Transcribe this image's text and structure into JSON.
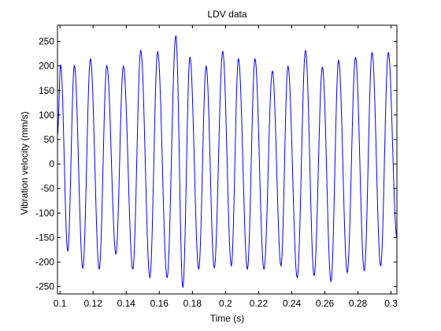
{
  "chart_data": {
    "type": "line",
    "title": "LDV data",
    "xlabel": "Time (s)",
    "ylabel": "Vibration velocity (mm/s)",
    "xlim": [
      0.0985,
      0.3035
    ],
    "ylim": [
      -265,
      283
    ],
    "xticks": [
      0.1,
      0.12,
      0.14,
      0.16,
      0.18,
      0.2,
      0.22,
      0.24,
      0.26,
      0.28,
      0.3
    ],
    "xtick_labels": [
      "0.1",
      "0.12",
      "0.14",
      "0.16",
      "0.18",
      "0.2",
      "0.22",
      "0.24",
      "0.26",
      "0.28",
      "0.3"
    ],
    "yticks": [
      -250,
      -200,
      -150,
      -100,
      -50,
      0,
      50,
      100,
      150,
      200,
      250
    ],
    "ytick_labels": [
      "-250",
      "-200",
      "-150",
      "-100",
      "-50",
      "0",
      "50",
      "100",
      "150",
      "200",
      "250"
    ],
    "grid": false,
    "line_color": "#0000ff",
    "series": [
      {
        "points": [
          [
            0.0985,
            60
          ],
          [
            0.1004,
            202
          ],
          [
            0.1047,
            -178
          ],
          [
            0.1087,
            201
          ],
          [
            0.1138,
            -213
          ],
          [
            0.1184,
            215
          ],
          [
            0.1237,
            -215
          ],
          [
            0.1283,
            201
          ],
          [
            0.1338,
            -184
          ],
          [
            0.1383,
            200
          ],
          [
            0.144,
            -215
          ],
          [
            0.1488,
            232
          ],
          [
            0.1543,
            -232
          ],
          [
            0.159,
            230
          ],
          [
            0.1647,
            -232
          ],
          [
            0.17,
            262
          ],
          [
            0.1742,
            -252
          ],
          [
            0.1785,
            218
          ],
          [
            0.1838,
            -215
          ],
          [
            0.1883,
            200
          ],
          [
            0.1932,
            -212
          ],
          [
            0.1983,
            230
          ],
          [
            0.2035,
            -208
          ],
          [
            0.2078,
            215
          ],
          [
            0.2132,
            -215
          ],
          [
            0.2178,
            215
          ],
          [
            0.2232,
            -215
          ],
          [
            0.2283,
            190
          ],
          [
            0.2335,
            -208
          ],
          [
            0.2377,
            200
          ],
          [
            0.2433,
            -232
          ],
          [
            0.2483,
            232
          ],
          [
            0.2535,
            -228
          ],
          [
            0.2585,
            198
          ],
          [
            0.2637,
            -240
          ],
          [
            0.2683,
            212
          ],
          [
            0.2735,
            -222
          ],
          [
            0.2785,
            218
          ],
          [
            0.2838,
            -218
          ],
          [
            0.2885,
            228
          ],
          [
            0.2937,
            -208
          ],
          [
            0.2983,
            228
          ],
          [
            0.3035,
            -150
          ]
        ]
      }
    ]
  }
}
